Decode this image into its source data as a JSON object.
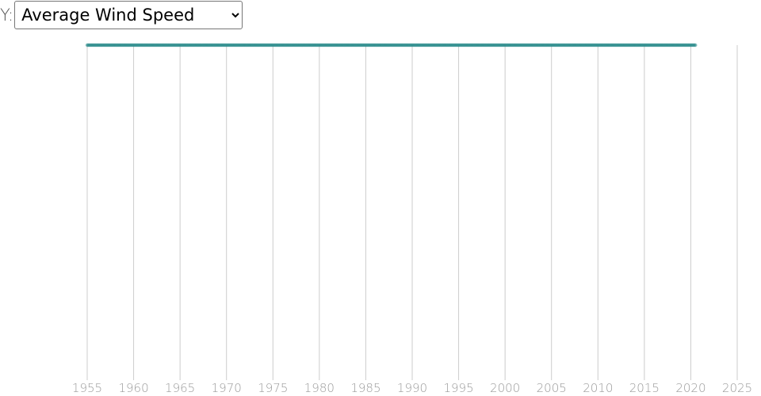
{
  "controls": {
    "y_label": "Y:",
    "y_options": [
      "Average Wind Speed"
    ],
    "y_selected": "Average Wind Speed"
  },
  "colors": {
    "series": "#2a8a8a",
    "grid": "#cccccc",
    "tick_text": "#9a9a9a"
  },
  "chart_data": {
    "type": "scatter",
    "title": "",
    "xlabel": "",
    "ylabel": "",
    "x_ticks": [
      1955,
      1960,
      1965,
      1970,
      1975,
      1980,
      1985,
      1990,
      1995,
      2000,
      2005,
      2010,
      2015,
      2020,
      2025
    ],
    "xlim": [
      1955,
      2025
    ],
    "grid": "vertical",
    "series": [
      {
        "x_range": [
          1955,
          2020.5
        ]
      }
    ]
  }
}
